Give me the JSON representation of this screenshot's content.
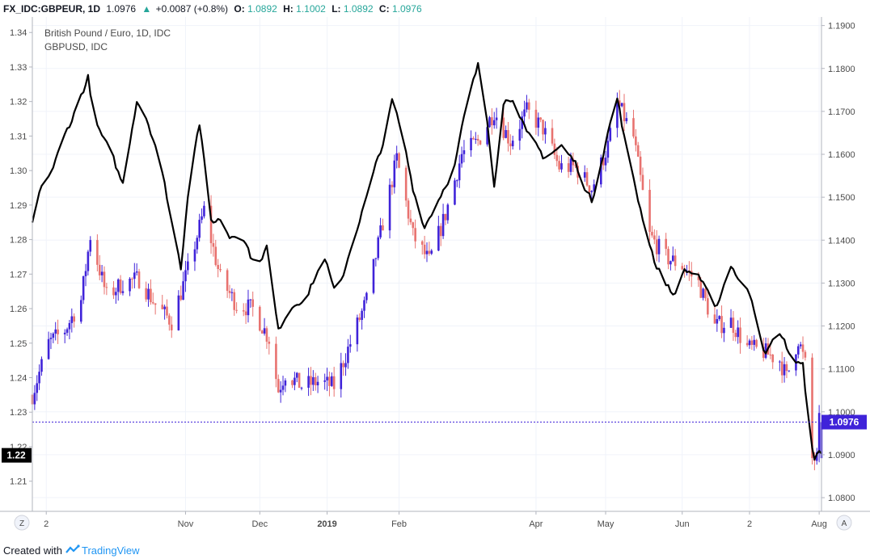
{
  "header": {
    "symbol": "FX_IDC:GBPEUR, 1D",
    "last": "1.0976",
    "change": "+0.0087 (+0.8%)",
    "o_label": "O:",
    "o_value": "1.0892",
    "h_label": "H:",
    "h_value": "1.1002",
    "l_label": "L:",
    "l_value": "1.0892",
    "c_label": "C:",
    "c_value": "1.0976"
  },
  "legend": {
    "main_title": "British Pound / Euro, 1D, IDC",
    "overlay_title": "GBPUSD, IDC"
  },
  "colors": {
    "up": "#3f23d9",
    "down": "#e8726f",
    "overlay": "#000000",
    "price_line": "#3f23d9",
    "grid": "#f0f3fa",
    "axis_text": "#4a4a4a",
    "positive": "#26a69a"
  },
  "scale_buttons": {
    "left": "Z",
    "right": "A"
  },
  "footer": {
    "created_with": "Created with",
    "brand": "TradingView"
  },
  "chart_data": {
    "type": "candlestick",
    "title": "British Pound / Euro, 1D, IDC",
    "x_range": [
      "2018-08-27",
      "2019-08-02"
    ],
    "x_ticks": [
      {
        "date": "2018-09-02",
        "label": "2",
        "bold": false
      },
      {
        "date": "2018-11-01",
        "label": "Nov",
        "bold": false
      },
      {
        "date": "2018-12-03",
        "label": "Dec",
        "bold": false
      },
      {
        "date": "2019-01-01",
        "label": "2019",
        "bold": true
      },
      {
        "date": "2019-02-01",
        "label": "Feb",
        "bold": false
      },
      {
        "date": "2019-04-01",
        "label": "Apr",
        "bold": false
      },
      {
        "date": "2019-05-01",
        "label": "May",
        "bold": false
      },
      {
        "date": "2019-06-03",
        "label": "Jun",
        "bold": false
      },
      {
        "date": "2019-07-02",
        "label": "2",
        "bold": false
      },
      {
        "date": "2019-08-01",
        "label": "Aug",
        "bold": false
      }
    ],
    "right_axis": {
      "series": "GBPEUR",
      "range": [
        1.077,
        1.192
      ],
      "ticks": [
        "1.0800",
        "1.0900",
        "1.1000",
        "1.1100",
        "1.1200",
        "1.1300",
        "1.1400",
        "1.1500",
        "1.1600",
        "1.1700",
        "1.1800",
        "1.1900"
      ],
      "last_value_label": "1.0976",
      "last_value": 1.0976
    },
    "left_axis": {
      "series": "GBPUSD",
      "range": [
        1.2015,
        1.3445
      ],
      "ticks": [
        "1.21",
        "1.22",
        "1.23",
        "1.24",
        "1.25",
        "1.26",
        "1.27",
        "1.28",
        "1.29",
        "1.30",
        "1.31",
        "1.32",
        "1.33",
        "1.34"
      ],
      "last_value_label": "1.22",
      "last_value": 1.2175
    },
    "gbpeur_anchors": [
      [
        "2018-08-27",
        1.104
      ],
      [
        "2018-09-03",
        1.116
      ],
      [
        "2018-09-10",
        1.119
      ],
      [
        "2018-09-17",
        1.126
      ],
      [
        "2018-09-21",
        1.141
      ],
      [
        "2018-09-28",
        1.127
      ],
      [
        "2018-10-05",
        1.13
      ],
      [
        "2018-10-12",
        1.131
      ],
      [
        "2018-10-19",
        1.125
      ],
      [
        "2018-10-26",
        1.121
      ],
      [
        "2018-11-02",
        1.133
      ],
      [
        "2018-11-09",
        1.147
      ],
      [
        "2018-11-16",
        1.131
      ],
      [
        "2018-11-23",
        1.125
      ],
      [
        "2018-11-30",
        1.124
      ],
      [
        "2018-12-07",
        1.117
      ],
      [
        "2018-12-11",
        1.105
      ],
      [
        "2018-12-14",
        1.109
      ],
      [
        "2018-12-21",
        1.106
      ],
      [
        "2018-12-28",
        1.107
      ],
      [
        "2019-01-04",
        1.106
      ],
      [
        "2019-01-11",
        1.116
      ],
      [
        "2019-01-18",
        1.126
      ],
      [
        "2019-01-25",
        1.144
      ],
      [
        "2019-01-31",
        1.159
      ],
      [
        "2019-02-07",
        1.141
      ],
      [
        "2019-02-14",
        1.135
      ],
      [
        "2019-02-21",
        1.146
      ],
      [
        "2019-02-28",
        1.16
      ],
      [
        "2019-03-07",
        1.163
      ],
      [
        "2019-03-14",
        1.17
      ],
      [
        "2019-03-21",
        1.163
      ],
      [
        "2019-03-28",
        1.17
      ],
      [
        "2019-04-04",
        1.166
      ],
      [
        "2019-04-11",
        1.157
      ],
      [
        "2019-04-18",
        1.157
      ],
      [
        "2019-04-25",
        1.152
      ],
      [
        "2019-05-02",
        1.162
      ],
      [
        "2019-05-06",
        1.172
      ],
      [
        "2019-05-13",
        1.164
      ],
      [
        "2019-05-20",
        1.141
      ],
      [
        "2019-05-27",
        1.136
      ],
      [
        "2019-06-03",
        1.134
      ],
      [
        "2019-06-10",
        1.13
      ],
      [
        "2019-06-17",
        1.12
      ],
      [
        "2019-06-24",
        1.121
      ],
      [
        "2019-07-01",
        1.115
      ],
      [
        "2019-07-08",
        1.114
      ],
      [
        "2019-07-15",
        1.112
      ],
      [
        "2019-07-18",
        1.108
      ],
      [
        "2019-07-23",
        1.117
      ],
      [
        "2019-07-26",
        1.111
      ],
      [
        "2019-07-29",
        1.089
      ],
      [
        "2019-07-31",
        1.089
      ],
      [
        "2019-08-01",
        1.0976
      ]
    ],
    "gbpusd_anchors": [
      [
        "2018-08-27",
        1.284
      ],
      [
        "2018-08-30",
        1.293
      ],
      [
        "2018-09-05",
        1.301
      ],
      [
        "2018-09-09",
        1.308
      ],
      [
        "2018-09-13",
        1.315
      ],
      [
        "2018-09-20",
        1.327
      ],
      [
        "2018-09-23",
        1.314
      ],
      [
        "2018-09-30",
        1.304
      ],
      [
        "2018-10-05",
        1.296
      ],
      [
        "2018-10-11",
        1.321
      ],
      [
        "2018-10-15",
        1.316
      ],
      [
        "2018-10-20",
        1.306
      ],
      [
        "2018-10-27",
        1.282
      ],
      [
        "2018-10-30",
        1.272
      ],
      [
        "2018-11-03",
        1.301
      ],
      [
        "2018-11-07",
        1.314
      ],
      [
        "2018-11-12",
        1.285
      ],
      [
        "2018-11-16",
        1.286
      ],
      [
        "2018-11-20",
        1.281
      ],
      [
        "2018-11-25",
        1.283
      ],
      [
        "2018-12-01",
        1.272
      ],
      [
        "2018-12-06",
        1.278
      ],
      [
        "2018-12-11",
        1.253
      ],
      [
        "2018-12-15",
        1.26
      ],
      [
        "2018-12-24",
        1.265
      ],
      [
        "2018-12-31",
        1.275
      ],
      [
        "2019-01-05",
        1.262
      ],
      [
        "2019-01-12",
        1.28
      ],
      [
        "2019-01-19",
        1.294
      ],
      [
        "2019-01-25",
        1.308
      ],
      [
        "2019-01-29",
        1.32
      ],
      [
        "2019-02-02",
        1.311
      ],
      [
        "2019-02-07",
        1.295
      ],
      [
        "2019-02-12",
        1.284
      ],
      [
        "2019-02-18",
        1.292
      ],
      [
        "2019-02-25",
        1.302
      ],
      [
        "2019-03-02",
        1.318
      ],
      [
        "2019-03-07",
        1.33
      ],
      [
        "2019-03-10",
        1.32
      ],
      [
        "2019-03-14",
        1.297
      ],
      [
        "2019-03-18",
        1.32
      ],
      [
        "2019-03-22",
        1.322
      ],
      [
        "2019-03-28",
        1.31
      ],
      [
        "2019-04-04",
        1.304
      ],
      [
        "2019-04-12",
        1.307
      ],
      [
        "2019-04-18",
        1.302
      ],
      [
        "2019-04-25",
        1.291
      ],
      [
        "2019-05-01",
        1.309
      ],
      [
        "2019-05-06",
        1.321
      ],
      [
        "2019-05-10",
        1.306
      ],
      [
        "2019-05-16",
        1.289
      ],
      [
        "2019-05-23",
        1.272
      ],
      [
        "2019-05-30",
        1.264
      ],
      [
        "2019-06-04",
        1.271
      ],
      [
        "2019-06-10",
        1.27
      ],
      [
        "2019-06-17",
        1.259
      ],
      [
        "2019-06-24",
        1.273
      ],
      [
        "2019-06-28",
        1.268
      ],
      [
        "2019-07-03",
        1.263
      ],
      [
        "2019-07-09",
        1.247
      ],
      [
        "2019-07-15",
        1.253
      ],
      [
        "2019-07-20",
        1.246
      ],
      [
        "2019-07-25",
        1.243
      ],
      [
        "2019-07-27",
        1.23
      ],
      [
        "2019-07-30",
        1.216
      ],
      [
        "2019-08-01",
        1.218
      ]
    ]
  }
}
